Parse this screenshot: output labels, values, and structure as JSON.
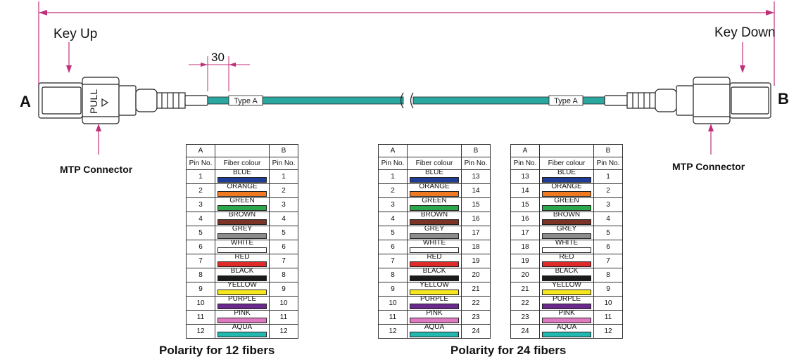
{
  "connector_a": {
    "end_label": "A",
    "key_label": "Key Up",
    "connector_label": "MTP Connector",
    "pull_text": "PULL"
  },
  "connector_b": {
    "end_label": "B",
    "key_label": "Key Down",
    "connector_label": "MTP Connector"
  },
  "dimension_label": "30",
  "cable_tag": "Type A",
  "colors": {
    "cable": "#2aa8a0",
    "arrow": "#c0307a"
  },
  "headers": {
    "end_a": "A",
    "end_b": "B",
    "pin_no": "Pin No.",
    "fiber_colour": "Fiber colour"
  },
  "fibers": [
    {
      "name": "BLUE",
      "color": "#1f3c96"
    },
    {
      "name": "ORANGE",
      "color": "#f07a22"
    },
    {
      "name": "GREEN",
      "color": "#2aa84a"
    },
    {
      "name": "BROWN",
      "color": "#7a3324"
    },
    {
      "name": "GREY",
      "color": "#8c8c8c"
    },
    {
      "name": "WHITE",
      "color": "#ffffff"
    },
    {
      "name": "RED",
      "color": "#e02a2a"
    },
    {
      "name": "BLACK",
      "color": "#1a1a1a"
    },
    {
      "name": "YELLOW",
      "color": "#f5e61e"
    },
    {
      "name": "PURPLE",
      "color": "#6a2a8c"
    },
    {
      "name": "PINK",
      "color": "#e07ac0"
    },
    {
      "name": "AQUA",
      "color": "#22b8b0"
    }
  ],
  "table_12": {
    "a_pins": [
      "1",
      "2",
      "3",
      "4",
      "5",
      "6",
      "7",
      "8",
      "9",
      "10",
      "11",
      "12"
    ],
    "b_pins": [
      "1",
      "2",
      "3",
      "4",
      "5",
      "6",
      "7",
      "8",
      "9",
      "10",
      "11",
      "12"
    ],
    "caption": "Polarity for 12 fibers"
  },
  "table_24a": {
    "a_pins": [
      "1",
      "2",
      "3",
      "4",
      "5",
      "6",
      "7",
      "8",
      "9",
      "10",
      "11",
      "12"
    ],
    "b_pins": [
      "13",
      "14",
      "15",
      "16",
      "17",
      "18",
      "19",
      "20",
      "21",
      "22",
      "23",
      "24"
    ]
  },
  "table_24b": {
    "a_pins": [
      "13",
      "14",
      "15",
      "16",
      "17",
      "18",
      "19",
      "20",
      "21",
      "22",
      "23",
      "24"
    ],
    "b_pins": [
      "1",
      "2",
      "3",
      "4",
      "5",
      "6",
      "7",
      "8",
      "9",
      "10",
      "11",
      "12"
    ]
  },
  "caption_24": "Polarity for 24 fibers"
}
